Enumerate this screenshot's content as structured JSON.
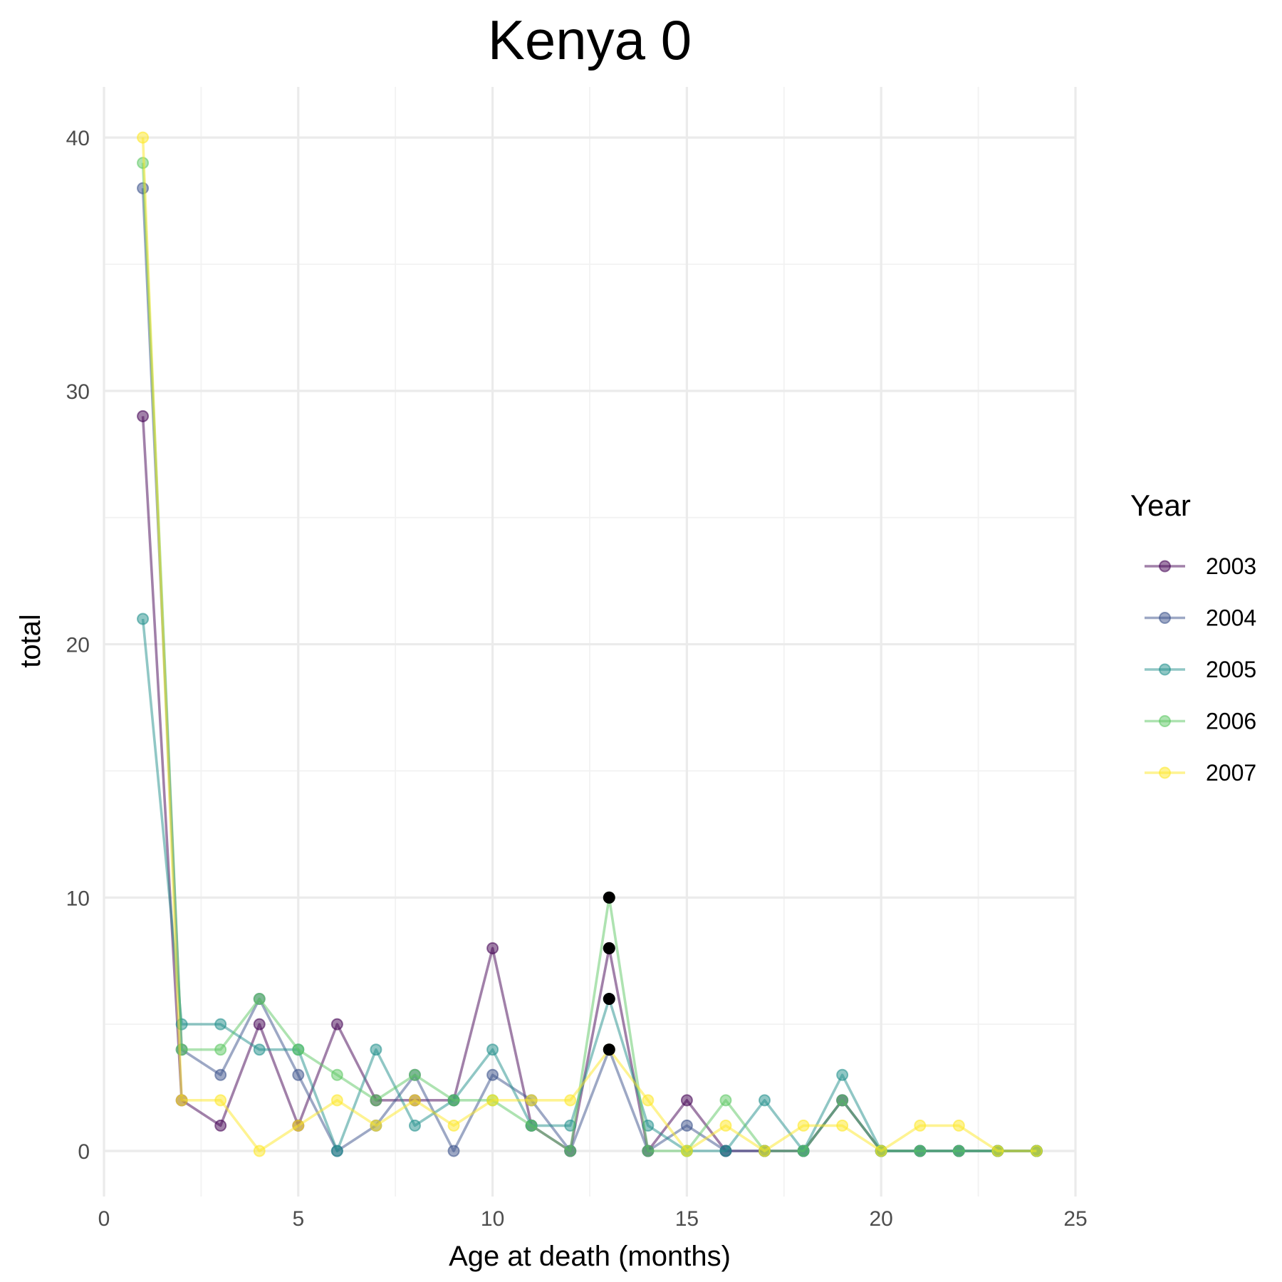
{
  "chart_data": {
    "type": "line",
    "title": "Kenya 0",
    "xlabel": "Age at death (months)",
    "ylabel": "total",
    "xlim": [
      0,
      25
    ],
    "ylim": [
      -1.8,
      42
    ],
    "x_ticks": [
      0,
      5,
      10,
      15,
      20,
      25
    ],
    "y_ticks": [
      0,
      10,
      20,
      30,
      40
    ],
    "grid": true,
    "legend": {
      "title": "Year",
      "position": "right"
    },
    "x": [
      1,
      2,
      3,
      4,
      5,
      6,
      7,
      8,
      9,
      10,
      11,
      12,
      13,
      14,
      15,
      16,
      17,
      18,
      19,
      20,
      21,
      22,
      23,
      24
    ],
    "series": [
      {
        "name": "2003",
        "color": "#440154",
        "values": [
          29,
          2,
          1,
          5,
          1,
          5,
          2,
          2,
          2,
          8,
          1,
          0,
          8,
          0,
          2,
          0,
          0,
          0,
          2,
          0,
          0,
          0,
          0,
          0
        ]
      },
      {
        "name": "2004",
        "color": "#3B528B",
        "values": [
          38,
          4,
          3,
          6,
          3,
          0,
          1,
          3,
          0,
          3,
          2,
          0,
          4,
          0,
          1,
          0,
          0,
          0,
          2,
          0,
          0,
          0,
          0,
          0
        ]
      },
      {
        "name": "2005",
        "color": "#21908C",
        "values": [
          21,
          5,
          5,
          4,
          4,
          0,
          4,
          1,
          2,
          4,
          1,
          1,
          6,
          1,
          0,
          0,
          2,
          0,
          3,
          0,
          0,
          0,
          0,
          0
        ]
      },
      {
        "name": "2006",
        "color": "#5DC863",
        "values": [
          39,
          4,
          4,
          6,
          4,
          3,
          2,
          3,
          2,
          2,
          1,
          0,
          10,
          0,
          0,
          2,
          0,
          0,
          2,
          0,
          0,
          0,
          0,
          0
        ]
      },
      {
        "name": "2007",
        "color": "#FDE725",
        "values": [
          40,
          2,
          2,
          0,
          1,
          2,
          1,
          2,
          1,
          2,
          2,
          2,
          4,
          2,
          0,
          1,
          0,
          1,
          1,
          0,
          1,
          1,
          0,
          0
        ]
      }
    ],
    "highlight_points": {
      "color": "#000000",
      "x": [
        13,
        13,
        13,
        13
      ],
      "y": [
        10,
        8,
        6,
        4
      ]
    }
  }
}
